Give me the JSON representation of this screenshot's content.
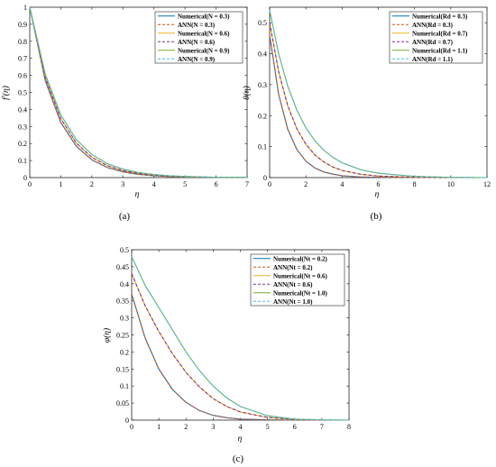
{
  "chart_data": [
    {
      "id": "a",
      "type": "line",
      "panel_label": "(a)",
      "xlabel": "η",
      "ylabel": "f'(η)",
      "xlim": [
        0,
        7
      ],
      "ylim": [
        0,
        1
      ],
      "xticks": [
        0,
        1,
        2,
        3,
        4,
        5,
        6,
        7
      ],
      "yticks": [
        0,
        0.1,
        0.2,
        0.3,
        0.4,
        0.5,
        0.6,
        0.7,
        0.8,
        0.9,
        1
      ],
      "legend_position": "top-right",
      "series": [
        {
          "name": "Numerical(N = 0.3)",
          "color": "#0072BD",
          "dash": false,
          "x": [
            0,
            0.5,
            1,
            1.5,
            2,
            2.5,
            3,
            3.5,
            4,
            4.5,
            5,
            6,
            7
          ],
          "y": [
            1,
            0.568,
            0.323,
            0.184,
            0.104,
            0.059,
            0.034,
            0.019,
            0.011,
            0.006,
            0.004,
            0.001,
            0
          ]
        },
        {
          "name": "ANN(N = 0.3)",
          "color": "#D95319",
          "dash": true,
          "x": [
            0,
            0.5,
            1,
            1.5,
            2,
            2.5,
            3,
            3.5,
            4,
            4.5,
            5,
            6,
            7
          ],
          "y": [
            1,
            0.568,
            0.323,
            0.184,
            0.104,
            0.059,
            0.034,
            0.019,
            0.011,
            0.006,
            0.004,
            0.001,
            0
          ]
        },
        {
          "name": "Numerical(N = 0.6)",
          "color": "#EDB120",
          "dash": false,
          "x": [
            0,
            0.5,
            1,
            1.5,
            2,
            2.5,
            3,
            3.5,
            4,
            4.5,
            5,
            6,
            7
          ],
          "y": [
            1,
            0.588,
            0.346,
            0.203,
            0.119,
            0.07,
            0.041,
            0.024,
            0.014,
            0.008,
            0.005,
            0.002,
            0.001
          ]
        },
        {
          "name": "ANN(N = 0.6)",
          "color": "#7E2F8E",
          "dash": true,
          "x": [
            0,
            0.5,
            1,
            1.5,
            2,
            2.5,
            3,
            3.5,
            4,
            4.5,
            5,
            6,
            7
          ],
          "y": [
            1,
            0.588,
            0.346,
            0.203,
            0.119,
            0.07,
            0.041,
            0.024,
            0.014,
            0.008,
            0.005,
            0.002,
            0.001
          ]
        },
        {
          "name": "Numerical(N = 0.9)",
          "color": "#77AC30",
          "dash": false,
          "x": [
            0,
            0.5,
            1,
            1.5,
            2,
            2.5,
            3,
            3.5,
            4,
            4.5,
            5,
            6,
            7
          ],
          "y": [
            1,
            0.607,
            0.368,
            0.223,
            0.135,
            0.082,
            0.05,
            0.03,
            0.018,
            0.011,
            0.007,
            0.002,
            0.001
          ]
        },
        {
          "name": "ANN(N = 0.9)",
          "color": "#4DBEEE",
          "dash": true,
          "x": [
            0,
            0.5,
            1,
            1.5,
            2,
            2.5,
            3,
            3.5,
            4,
            4.5,
            5,
            6,
            7
          ],
          "y": [
            1,
            0.607,
            0.368,
            0.223,
            0.135,
            0.082,
            0.05,
            0.03,
            0.018,
            0.011,
            0.007,
            0.002,
            0.001
          ]
        }
      ]
    },
    {
      "id": "b",
      "type": "line",
      "panel_label": "(b)",
      "xlabel": "η",
      "ylabel": "θ(η)",
      "xlim": [
        0,
        12
      ],
      "ylim": [
        0,
        0.55
      ],
      "xticks": [
        0,
        2,
        4,
        6,
        8,
        10,
        12
      ],
      "yticks": [
        0,
        0.1,
        0.2,
        0.3,
        0.4,
        0.5
      ],
      "legend_position": "top-right",
      "series": [
        {
          "name": "Numerical(Rd = 0.3)",
          "color": "#0072BD",
          "dash": false,
          "x": [
            0,
            0.5,
            1,
            1.5,
            2,
            2.5,
            3,
            3.5,
            4,
            5,
            6,
            8,
            10,
            12
          ],
          "y": [
            0.46,
            0.268,
            0.156,
            0.091,
            0.053,
            0.031,
            0.018,
            0.011,
            0.006,
            0.002,
            0.001,
            0,
            0,
            0
          ]
        },
        {
          "name": "ANN(Rd = 0.3)",
          "color": "#D95319",
          "dash": true,
          "x": [
            0,
            0.5,
            1,
            1.5,
            2,
            2.5,
            3,
            3.5,
            4,
            5,
            6,
            8,
            10,
            12
          ],
          "y": [
            0.46,
            0.268,
            0.156,
            0.091,
            0.053,
            0.031,
            0.018,
            0.011,
            0.006,
            0.002,
            0.001,
            0,
            0,
            0
          ]
        },
        {
          "name": "Numerical(Rd = 0.7)",
          "color": "#EDB120",
          "dash": false,
          "x": [
            0,
            0.5,
            1,
            1.5,
            2,
            2.5,
            3,
            3.5,
            4,
            5,
            6,
            8,
            10,
            12
          ],
          "y": [
            0.5,
            0.341,
            0.232,
            0.158,
            0.108,
            0.073,
            0.05,
            0.034,
            0.023,
            0.011,
            0.005,
            0.001,
            0,
            0
          ]
        },
        {
          "name": "ANN(Rd = 0.7)",
          "color": "#7E2F8E",
          "dash": true,
          "x": [
            0,
            0.5,
            1,
            1.5,
            2,
            2.5,
            3,
            3.5,
            4,
            5,
            6,
            8,
            10,
            12
          ],
          "y": [
            0.5,
            0.341,
            0.232,
            0.158,
            0.108,
            0.073,
            0.05,
            0.034,
            0.023,
            0.011,
            0.005,
            0.001,
            0,
            0
          ]
        },
        {
          "name": "Numerical(Rd = 1.1)",
          "color": "#77AC30",
          "dash": false,
          "x": [
            0,
            0.5,
            1,
            1.5,
            2,
            2.5,
            3,
            3.5,
            4,
            5,
            6,
            8,
            10,
            12
          ],
          "y": [
            0.54,
            0.399,
            0.295,
            0.218,
            0.161,
            0.119,
            0.088,
            0.065,
            0.048,
            0.026,
            0.014,
            0.004,
            0.001,
            0
          ]
        },
        {
          "name": "ANN(Rd = 1.1)",
          "color": "#4DBEEE",
          "dash": true,
          "x": [
            0,
            0.5,
            1,
            1.5,
            2,
            2.5,
            3,
            3.5,
            4,
            5,
            6,
            8,
            10,
            12
          ],
          "y": [
            0.54,
            0.399,
            0.295,
            0.218,
            0.161,
            0.119,
            0.088,
            0.065,
            0.048,
            0.026,
            0.014,
            0.004,
            0.001,
            0
          ]
        }
      ]
    },
    {
      "id": "c",
      "type": "line",
      "panel_label": "(c)",
      "xlabel": "η",
      "ylabel": "φ(η)",
      "xlim": [
        0,
        8
      ],
      "ylim": [
        0,
        0.5
      ],
      "xticks": [
        0,
        1,
        2,
        3,
        4,
        5,
        6,
        7,
        8
      ],
      "yticks": [
        0,
        0.05,
        0.1,
        0.15,
        0.2,
        0.25,
        0.3,
        0.35,
        0.4,
        0.45,
        0.5
      ],
      "legend_position": "top-right",
      "series": [
        {
          "name": "Numerical(Nt = 0.2)",
          "color": "#0072BD",
          "dash": false,
          "x": [
            0,
            0.5,
            1,
            1.5,
            2,
            2.5,
            3,
            3.5,
            4,
            5,
            6,
            7,
            8
          ],
          "y": [
            0.37,
            0.24,
            0.15,
            0.09,
            0.052,
            0.028,
            0.014,
            0.007,
            0.003,
            0.001,
            0,
            0,
            0
          ]
        },
        {
          "name": "ANN(Nt = 0.2)",
          "color": "#D95319",
          "dash": true,
          "x": [
            0,
            0.5,
            1,
            1.5,
            2,
            2.5,
            3,
            3.5,
            4,
            5,
            6,
            7,
            8
          ],
          "y": [
            0.37,
            0.24,
            0.15,
            0.09,
            0.052,
            0.028,
            0.014,
            0.007,
            0.003,
            0.001,
            0,
            0,
            0
          ]
        },
        {
          "name": "Numerical(Nt = 0.6)",
          "color": "#EDB120",
          "dash": false,
          "x": [
            0,
            0.5,
            1,
            1.5,
            2,
            2.5,
            3,
            3.5,
            4,
            5,
            6,
            7,
            8
          ],
          "y": [
            0.43,
            0.335,
            0.26,
            0.195,
            0.14,
            0.097,
            0.063,
            0.04,
            0.024,
            0.008,
            0.002,
            0,
            0
          ]
        },
        {
          "name": "ANN(Nt = 0.6)",
          "color": "#7E2F8E",
          "dash": true,
          "x": [
            0,
            0.5,
            1,
            1.5,
            2,
            2.5,
            3,
            3.5,
            4,
            5,
            6,
            7,
            8
          ],
          "y": [
            0.43,
            0.335,
            0.26,
            0.195,
            0.14,
            0.097,
            0.063,
            0.04,
            0.024,
            0.008,
            0.002,
            0,
            0
          ]
        },
        {
          "name": "Numerical(Nt = 1.0)",
          "color": "#77AC30",
          "dash": false,
          "x": [
            0,
            0.5,
            1,
            1.5,
            2,
            2.5,
            3,
            3.5,
            4,
            5,
            6,
            7,
            8
          ],
          "y": [
            0.48,
            0.395,
            0.33,
            0.265,
            0.2,
            0.145,
            0.1,
            0.065,
            0.04,
            0.013,
            0.003,
            0.001,
            0
          ]
        },
        {
          "name": "ANN(Nt = 1.0)",
          "color": "#4DBEEE",
          "dash": true,
          "x": [
            0,
            0.5,
            1,
            1.5,
            2,
            2.5,
            3,
            3.5,
            4,
            5,
            6,
            7,
            8
          ],
          "y": [
            0.48,
            0.395,
            0.33,
            0.265,
            0.2,
            0.145,
            0.1,
            0.065,
            0.04,
            0.013,
            0.003,
            0.001,
            0
          ]
        }
      ]
    }
  ]
}
